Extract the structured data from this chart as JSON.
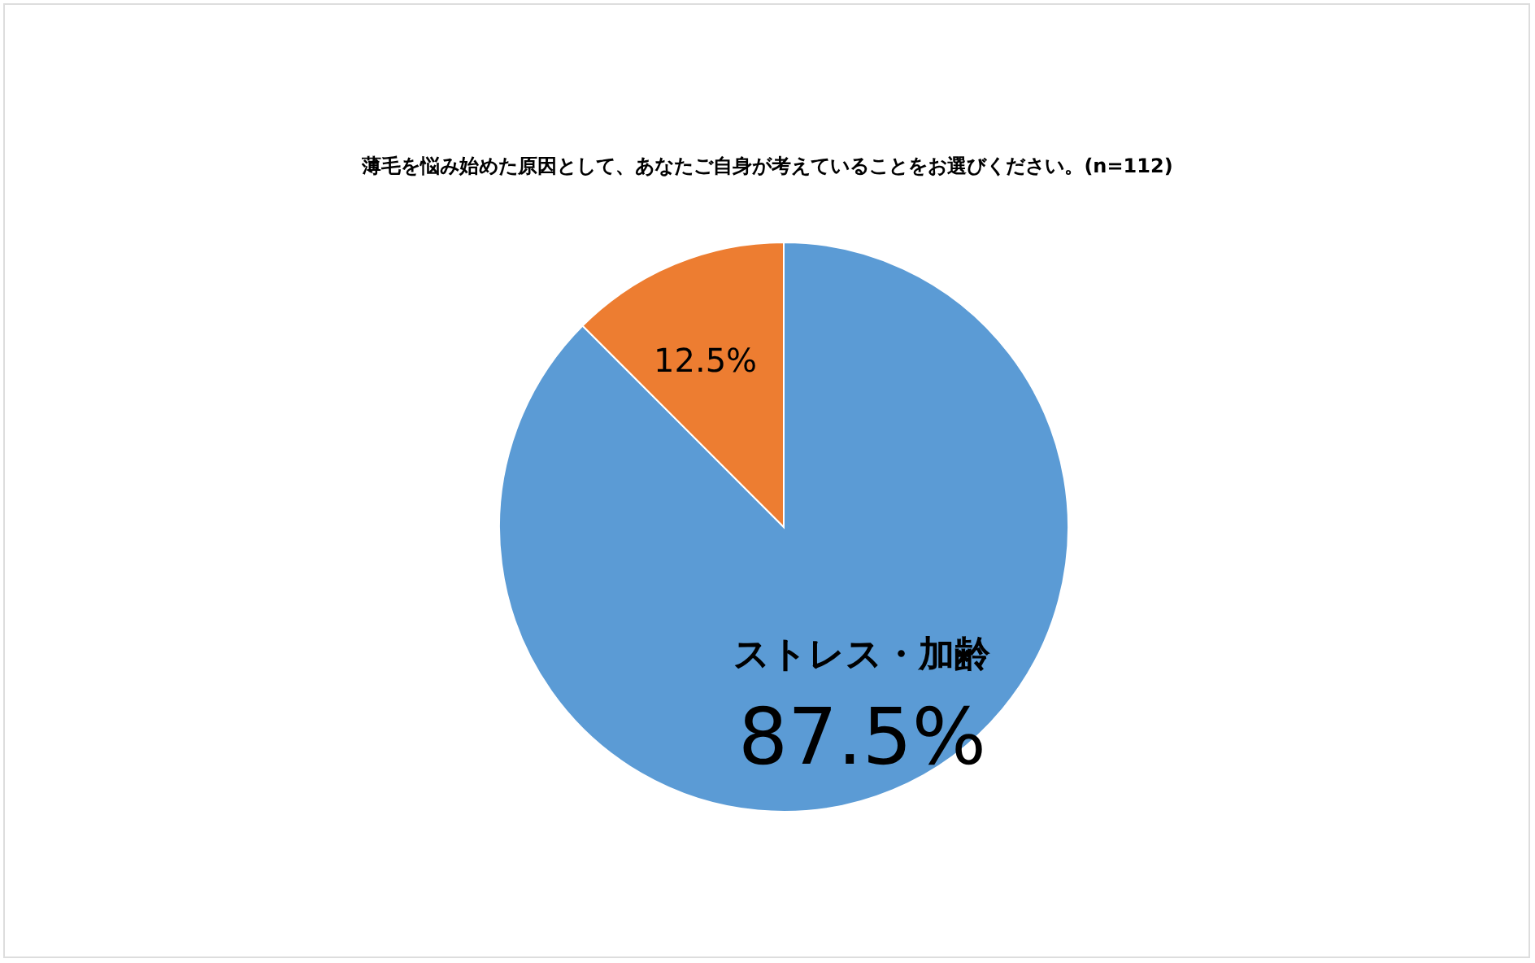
{
  "chart_data": {
    "type": "pie",
    "title": "薄毛を悩み始めた原因として、あなたご自身が考えていることをお選びください。(n=112)",
    "categories": [
      "ストレス・加齢",
      null
    ],
    "values": [
      87.5,
      12.5
    ],
    "colors": [
      "#5b9bd5",
      "#ed7d31"
    ],
    "value_labels": [
      "87.5%",
      "12.5%"
    ]
  }
}
